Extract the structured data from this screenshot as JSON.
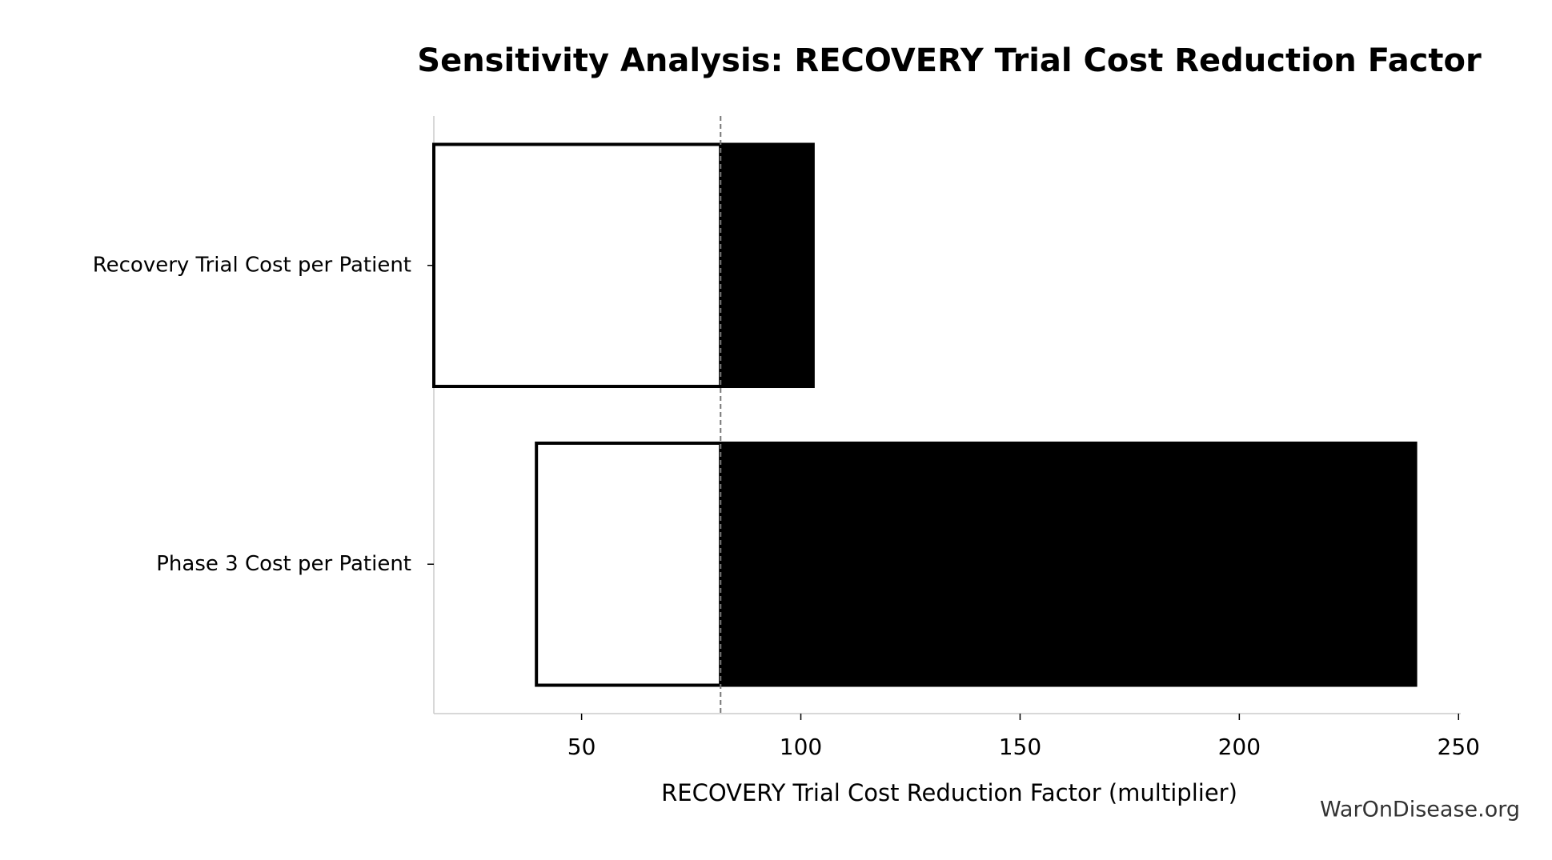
{
  "chart_data": {
    "type": "tornado",
    "title": "Sensitivity Analysis: RECOVERY Trial Cost Reduction Factor",
    "x_label": "RECOVERY Trial Cost Reduction Factor (multiplier)",
    "watermark": "WarOnDisease.org",
    "categories": [
      "Recovery Trial Cost per Patient",
      "Phase 3 Cost per Patient"
    ],
    "baseline": 81.7,
    "series": [
      {
        "color": "#ffffff",
        "values": [
          16.3,
          39.7
        ]
      },
      {
        "color": "#000000",
        "values": [
          102.8,
          240.2
        ]
      }
    ],
    "xlim": [
      16.3,
      250.5
    ],
    "xticks": [
      50,
      100,
      150,
      200,
      250
    ]
  }
}
